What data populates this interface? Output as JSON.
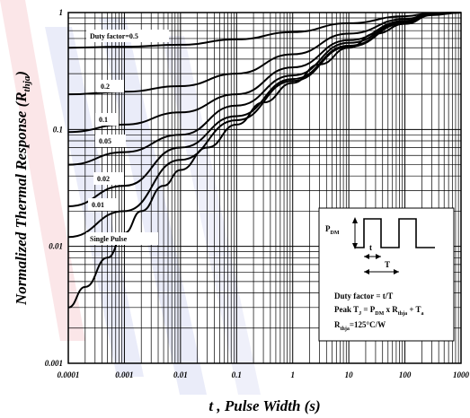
{
  "chart_data": {
    "type": "line",
    "xscale": "log",
    "yscale": "log",
    "xlim": [
      0.0001,
      1000
    ],
    "ylim": [
      0.001,
      1
    ],
    "xlabel": "t , Pulse Width (s)",
    "ylabel": "Normalized Thermal Response (R",
    "ylabel_sub": "thja",
    "ylabel_end": ")",
    "x_ticks": [
      "0.0001",
      "0.001",
      "0.01",
      "0.1",
      "1",
      "10",
      "100",
      "1000"
    ],
    "y_ticks": [
      "0.001",
      "0.01",
      "0.1",
      "1"
    ],
    "series": [
      {
        "name": "Duty factor=0.5",
        "x": [
          0.0001,
          0.001,
          0.01,
          0.1,
          1,
          10,
          100,
          300,
          1000
        ],
        "y": [
          0.5,
          0.51,
          0.53,
          0.59,
          0.68,
          0.81,
          0.93,
          0.99,
          1.0
        ]
      },
      {
        "name": "0.2",
        "x": [
          0.0001,
          0.001,
          0.01,
          0.1,
          1,
          10,
          100,
          300,
          1000
        ],
        "y": [
          0.2,
          0.21,
          0.235,
          0.3,
          0.44,
          0.66,
          0.88,
          0.98,
          1.0
        ]
      },
      {
        "name": "0.1",
        "x": [
          0.0001,
          0.001,
          0.01,
          0.1,
          1,
          10,
          100,
          300,
          1000
        ],
        "y": [
          0.095,
          0.11,
          0.14,
          0.2,
          0.34,
          0.58,
          0.85,
          0.97,
          1.0
        ]
      },
      {
        "name": "0.05",
        "x": [
          0.0001,
          0.001,
          0.01,
          0.1,
          1,
          10,
          100,
          300,
          1000
        ],
        "y": [
          0.05,
          0.064,
          0.09,
          0.16,
          0.29,
          0.55,
          0.83,
          0.97,
          1.0
        ]
      },
      {
        "name": "0.02",
        "x": [
          0.0001,
          0.001,
          0.01,
          0.1,
          1,
          10,
          100,
          300,
          1000
        ],
        "y": [
          0.022,
          0.033,
          0.07,
          0.13,
          0.27,
          0.52,
          0.82,
          0.96,
          1.0
        ]
      },
      {
        "name": "0.01",
        "x": [
          0.0001,
          0.001,
          0.01,
          0.1,
          1,
          10,
          100,
          300,
          1000
        ],
        "y": [
          0.012,
          0.02,
          0.055,
          0.12,
          0.26,
          0.51,
          0.81,
          0.96,
          1.0
        ]
      },
      {
        "name": "Single Pulse",
        "x": [
          0.0001,
          0.0002,
          0.0005,
          0.001,
          0.002,
          0.005,
          0.01,
          0.03,
          0.1,
          0.3,
          1,
          3,
          10,
          30,
          100,
          300,
          1000
        ],
        "y": [
          0.003,
          0.0045,
          0.008,
          0.013,
          0.02,
          0.033,
          0.045,
          0.07,
          0.11,
          0.17,
          0.25,
          0.36,
          0.5,
          0.66,
          0.8,
          0.95,
          1.0
        ]
      }
    ],
    "series_label_text": {
      "duty": "Duty factor=0.5",
      "s02": "0.2",
      "s01": "0.1",
      "s005": "0.05",
      "s002": "0.02",
      "s001": "0.01",
      "single": "Single Pulse"
    },
    "inset": {
      "pdm": "P",
      "pdm_sub": "DM",
      "t": "t",
      "T": "T",
      "line1": "Duty factor = t/T",
      "line2a": "Peak T",
      "line2b": "J",
      "line2c": " = P",
      "line2d": "DM",
      "line2e": " x R",
      "line2f": "thja",
      "line2g": " + T",
      "line2h": "a",
      "line3a": "R",
      "line3b": "thja",
      "line3c": "=125°C/W"
    },
    "grid": true
  }
}
